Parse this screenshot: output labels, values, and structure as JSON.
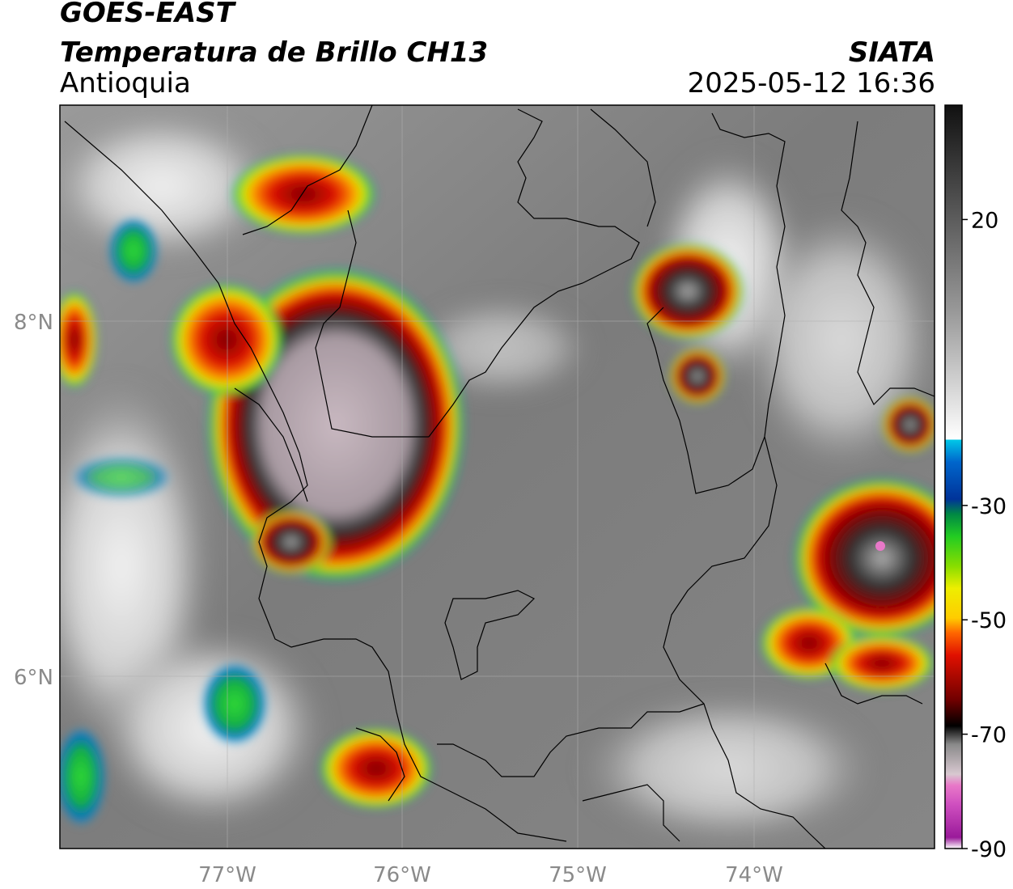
{
  "header": {
    "title_line1": "GOES-EAST",
    "title_line2": "Temperatura de Brillo CH13",
    "region": "Antioquia",
    "organization": "SIATA",
    "timestamp": "2025-05-12 16:36"
  },
  "map": {
    "lon_labels": [
      "77°W",
      "76°W",
      "75°W",
      "74°W"
    ],
    "lat_labels": [
      "8°N",
      "6°N"
    ],
    "gridlines": true
  },
  "colorbar": {
    "ticks": [
      {
        "value": 20,
        "label": "20"
      },
      {
        "value": -30,
        "label": "-30"
      },
      {
        "value": -50,
        "label": "-50"
      },
      {
        "value": -70,
        "label": "-70"
      },
      {
        "value": -90,
        "label": "-90"
      }
    ],
    "range": [
      -90,
      40
    ]
  },
  "colors": {
    "cold_tops": "#d8c8d0",
    "red_ring": "#cc1100",
    "green_ring": "#22cc22",
    "cyan_edge": "#00c8e8",
    "background_gray": "#7a7a7a"
  }
}
